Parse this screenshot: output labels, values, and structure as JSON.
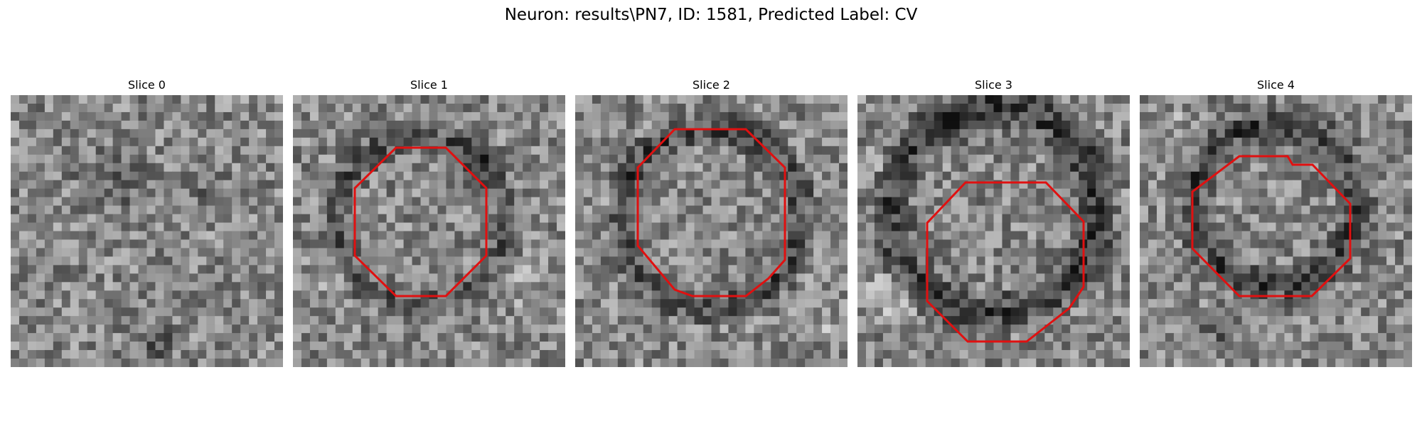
{
  "figure": {
    "title": "Neuron: results\\PN7, ID: 1581, Predicted Label: CV"
  },
  "panels": [
    {
      "title": "Slice 0",
      "has_outline": false
    },
    {
      "title": "Slice 1",
      "has_outline": true
    },
    {
      "title": "Slice 2",
      "has_outline": true
    },
    {
      "title": "Slice 3",
      "has_outline": true
    },
    {
      "title": "Slice 4",
      "has_outline": true
    }
  ],
  "colors": {
    "outline": "#e01010"
  }
}
